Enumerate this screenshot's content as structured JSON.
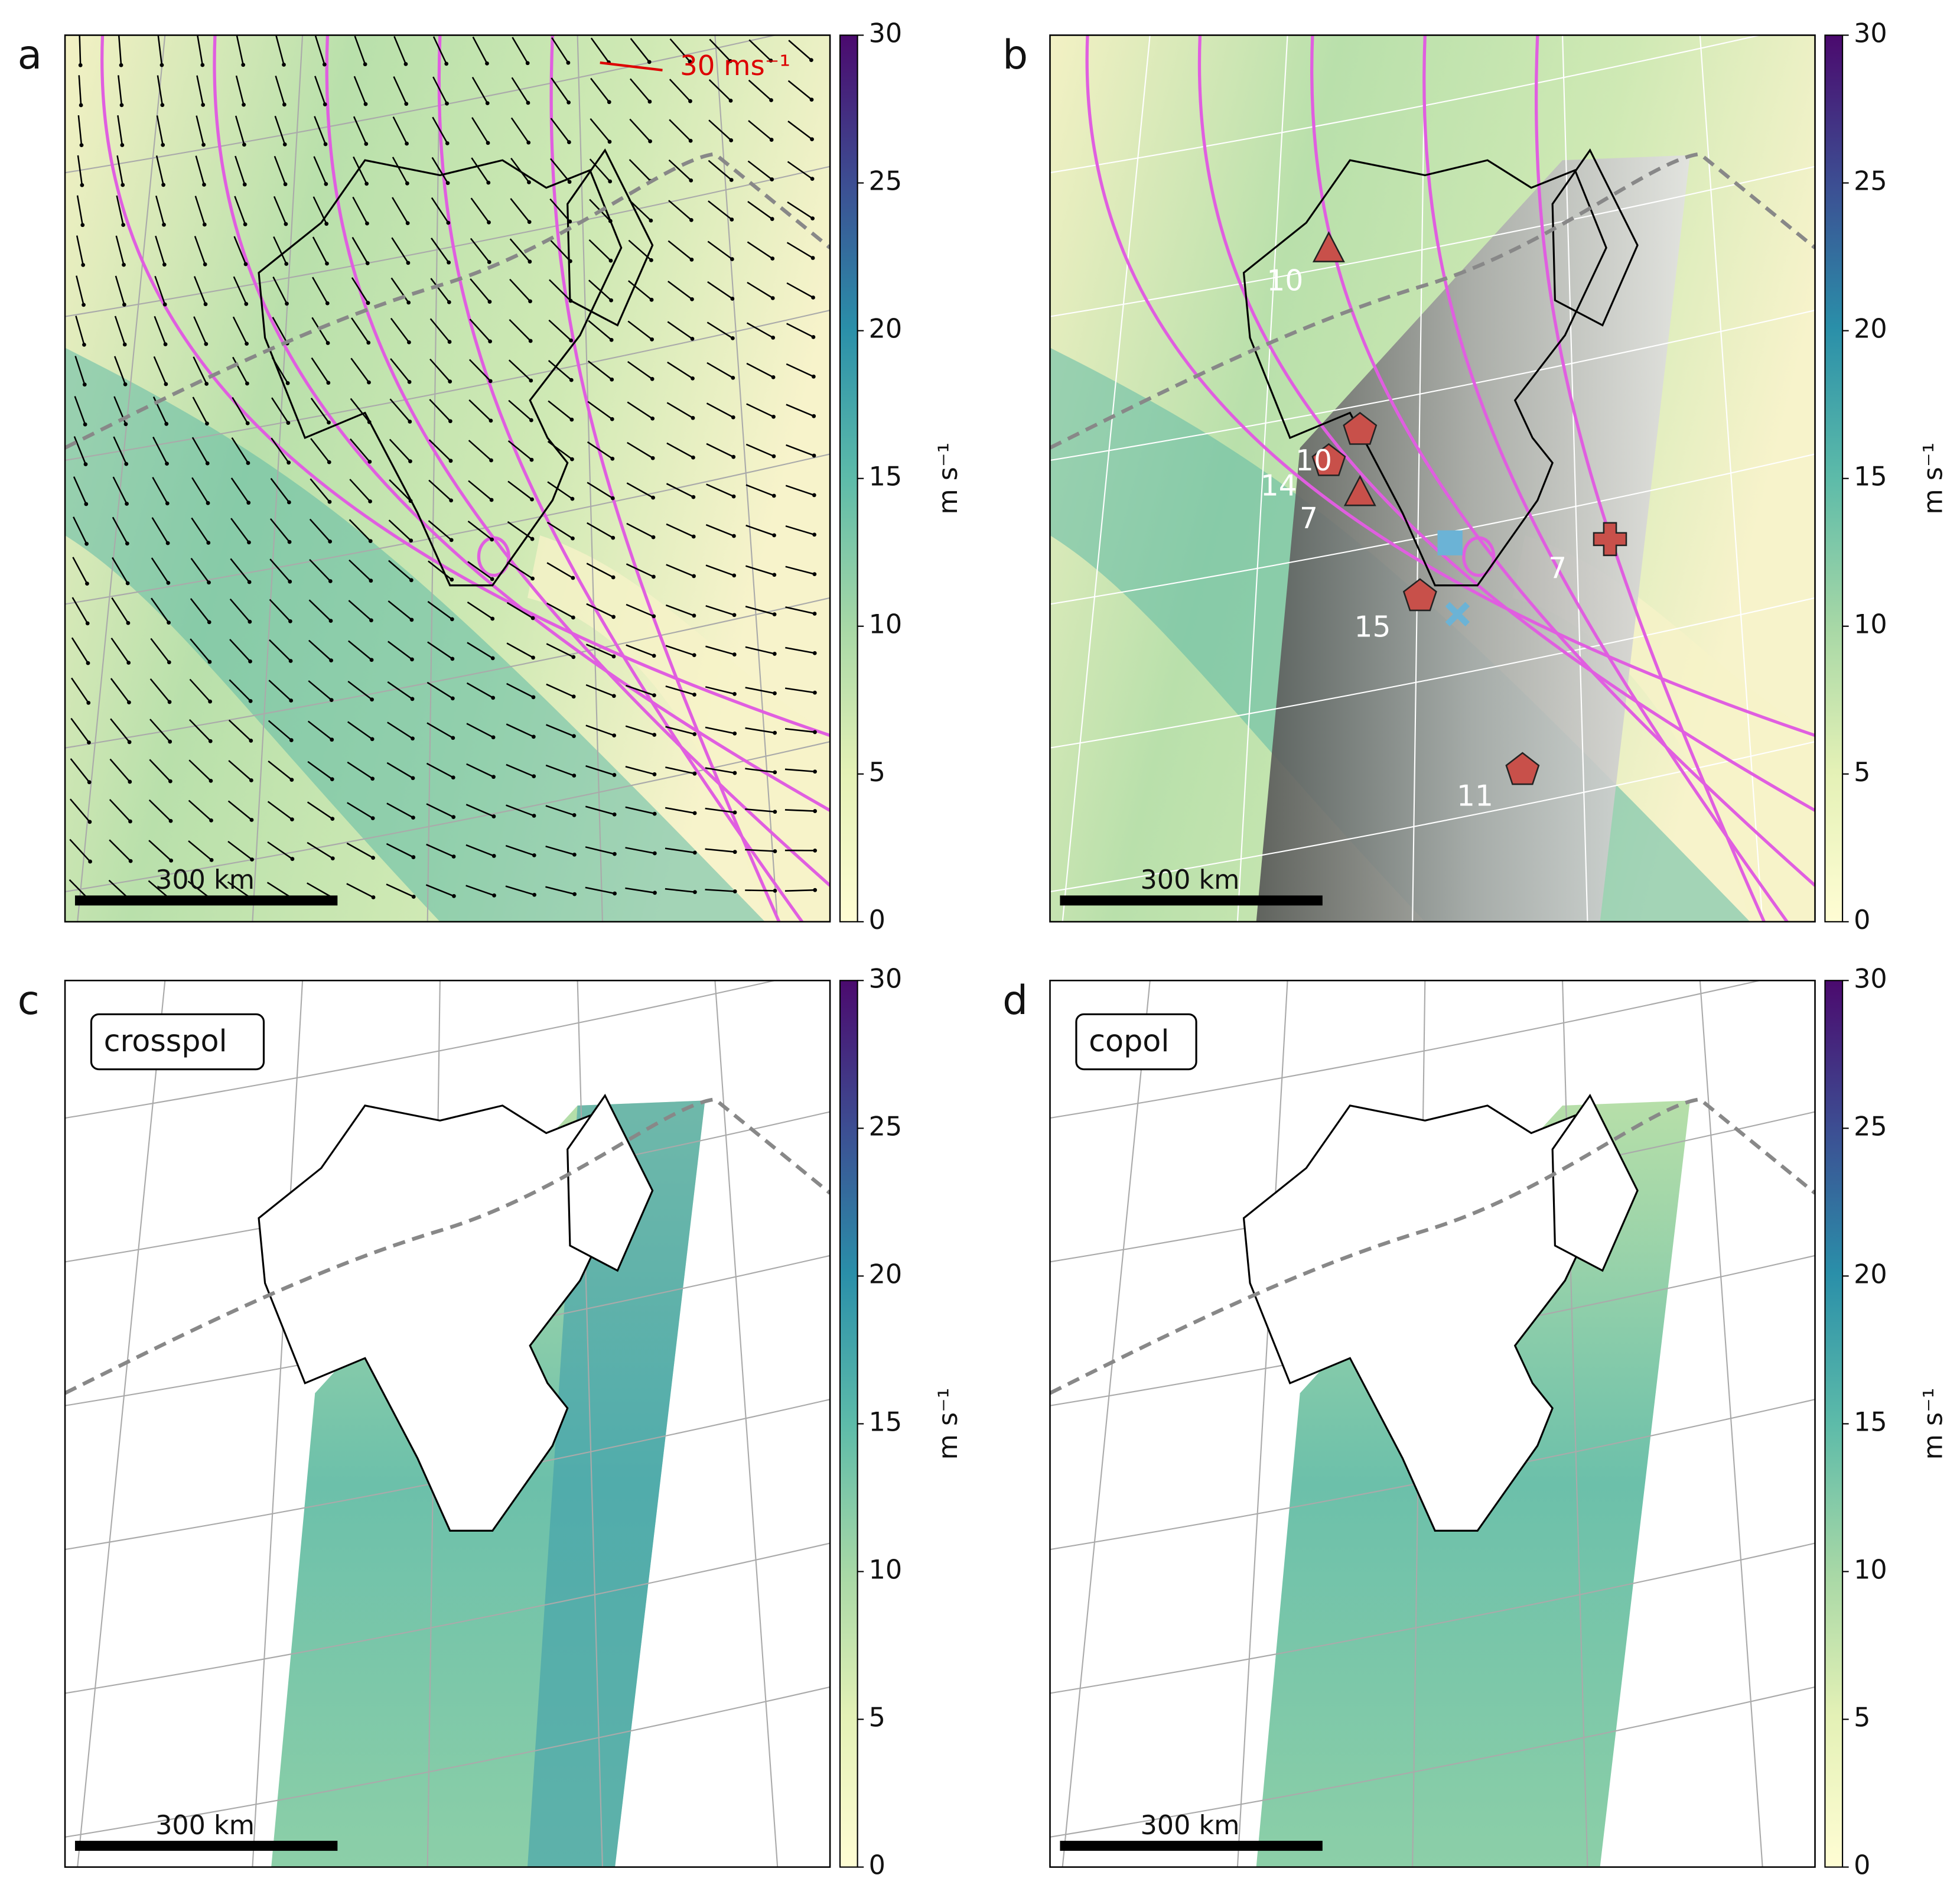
{
  "panels": [
    {
      "label": "a",
      "annotation": "30 ms⁻¹",
      "scale_bar": "300 km",
      "colorbar": {
        "lim": [
          0,
          30
        ],
        "ticks": [
          0,
          5,
          10,
          15,
          20,
          25,
          30
        ],
        "label": "m s⁻¹"
      }
    },
    {
      "label": "b",
      "scale_bar": "300 km",
      "station_labels": [
        "10",
        "10",
        "14",
        "7",
        "7",
        "15",
        "11"
      ],
      "colorbar": {
        "lim": [
          0,
          30
        ],
        "ticks": [
          0,
          5,
          10,
          15,
          20,
          25,
          30
        ],
        "label": "m s⁻¹"
      }
    },
    {
      "label": "c",
      "box_label": "crosspol",
      "scale_bar": "300 km",
      "colorbar": {
        "lim": [
          0,
          30
        ],
        "ticks": [
          0,
          5,
          10,
          15,
          20,
          25,
          30
        ],
        "label": "m s⁻¹"
      }
    },
    {
      "label": "d",
      "box_label": "copol",
      "scale_bar": "300 km",
      "colorbar": {
        "lim": [
          0,
          30
        ],
        "ticks": [
          0,
          5,
          10,
          15,
          20,
          25,
          30
        ],
        "label": "m s⁻¹"
      }
    }
  ]
}
